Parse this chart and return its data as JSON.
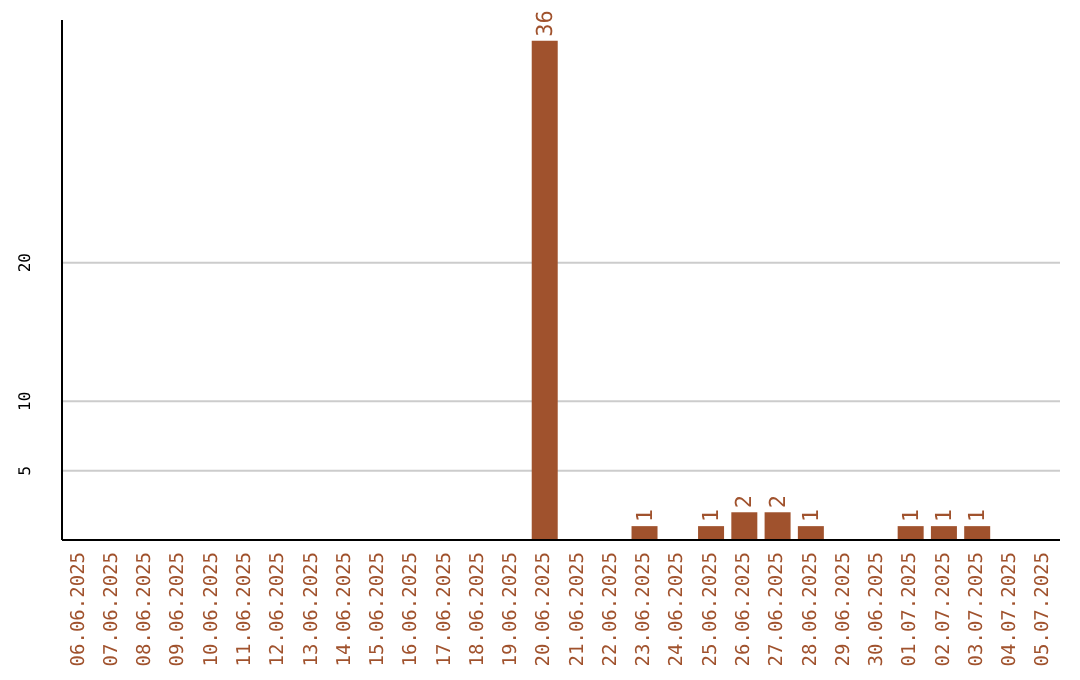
{
  "chart_data": {
    "type": "bar",
    "categories": [
      "06.06.2025",
      "07.06.2025",
      "08.06.2025",
      "09.06.2025",
      "10.06.2025",
      "11.06.2025",
      "12.06.2025",
      "13.06.2025",
      "14.06.2025",
      "15.06.2025",
      "16.06.2025",
      "17.06.2025",
      "18.06.2025",
      "19.06.2025",
      "20.06.2025",
      "21.06.2025",
      "22.06.2025",
      "23.06.2025",
      "24.06.2025",
      "25.06.2025",
      "26.06.2025",
      "27.06.2025",
      "28.06.2025",
      "29.06.2025",
      "30.06.2025",
      "01.07.2025",
      "02.07.2025",
      "03.07.2025",
      "04.07.2025",
      "05.07.2025"
    ],
    "values": [
      0,
      0,
      0,
      0,
      0,
      0,
      0,
      0,
      0,
      0,
      0,
      0,
      0,
      0,
      36,
      0,
      0,
      1,
      0,
      1,
      2,
      2,
      1,
      0,
      0,
      1,
      1,
      1,
      0,
      0
    ],
    "value_labels": [
      null,
      null,
      null,
      null,
      null,
      null,
      null,
      null,
      null,
      null,
      null,
      null,
      null,
      null,
      "36",
      null,
      null,
      "1",
      null,
      "1",
      "2",
      "2",
      "1",
      null,
      null,
      "1",
      "1",
      "1",
      null,
      null
    ],
    "color": "#a0522d",
    "ylim": [
      0,
      37.5
    ],
    "yticks": [
      5,
      10,
      20
    ],
    "grid": "y"
  }
}
